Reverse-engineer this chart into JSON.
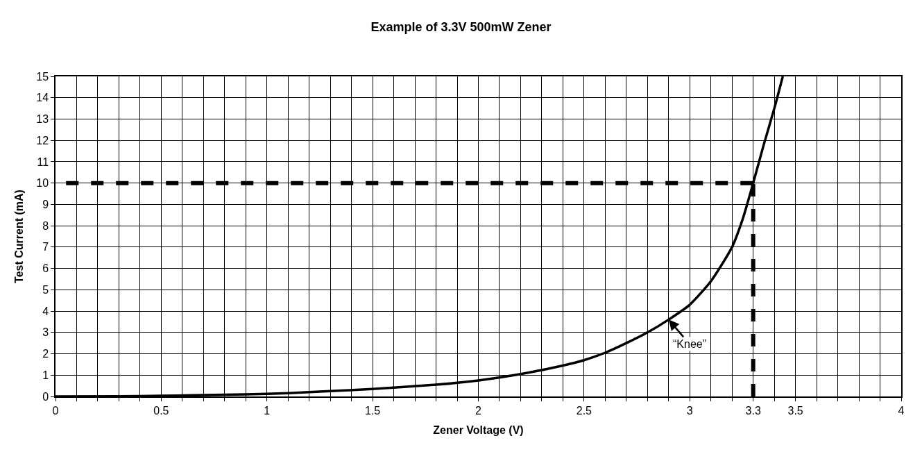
{
  "chart_data": {
    "type": "line",
    "title": "Example of 3.3V 500mW Zener",
    "xlabel": "Zener Voltage (V)",
    "ylabel": "Test Current (mA)",
    "series": [
      {
        "color": "#000000",
        "line_style": "solid",
        "x": [
          0,
          0.3,
          0.5,
          0.8,
          1,
          1.2,
          1.5,
          1.8,
          2,
          2.2,
          2.4,
          2.5,
          2.6,
          2.7,
          2.8,
          2.9,
          3.0,
          3.1,
          3.2,
          3.25,
          3.3,
          3.35,
          3.4,
          3.44
        ],
        "values": [
          0,
          0.01,
          0.03,
          0.08,
          0.12,
          0.2,
          0.35,
          0.55,
          0.75,
          1.05,
          1.45,
          1.7,
          2.05,
          2.5,
          3.0,
          3.6,
          4.3,
          5.4,
          7.0,
          8.3,
          10,
          11.8,
          13.5,
          15
        ]
      },
      {
        "color": "#000000",
        "line_style": "dashed",
        "x": [
          0.05,
          3.3
        ],
        "values": [
          10,
          10
        ]
      },
      {
        "color": "#000000",
        "line_style": "dashed",
        "x": [
          3.3,
          3.3
        ],
        "values": [
          0,
          10
        ]
      }
    ],
    "annotations": [
      {
        "text": "“Knee”",
        "x": 2.9,
        "y": 3.6
      }
    ],
    "xlim": [
      0,
      4
    ],
    "ylim": [
      0,
      15
    ],
    "xticks": [
      0,
      {
        "value": 0.1,
        "label": null
      },
      {
        "value": 0.2,
        "label": null
      },
      {
        "value": 0.3,
        "label": null
      },
      {
        "value": 0.4,
        "label": null
      },
      0.5,
      {
        "value": 0.6,
        "label": null
      },
      {
        "value": 0.7,
        "label": null
      },
      {
        "value": 0.8,
        "label": null
      },
      {
        "value": 0.9,
        "label": null
      },
      1,
      {
        "value": 1.1,
        "label": null
      },
      {
        "value": 1.2,
        "label": null
      },
      {
        "value": 1.3,
        "label": null
      },
      {
        "value": 1.4,
        "label": null
      },
      1.5,
      {
        "value": 1.6,
        "label": null
      },
      {
        "value": 1.7,
        "label": null
      },
      {
        "value": 1.8,
        "label": null
      },
      {
        "value": 1.9,
        "label": null
      },
      2,
      {
        "value": 2.1,
        "label": null
      },
      {
        "value": 2.2,
        "label": null
      },
      {
        "value": 2.3,
        "label": null
      },
      {
        "value": 2.4,
        "label": null
      },
      2.5,
      {
        "value": 2.6,
        "label": null
      },
      {
        "value": 2.7,
        "label": null
      },
      {
        "value": 2.8,
        "label": null
      },
      {
        "value": 2.9,
        "label": null
      },
      3,
      {
        "value": 3.1,
        "label": null
      },
      {
        "value": 3.2,
        "label": null
      },
      3.3,
      {
        "value": 3.4,
        "label": null
      },
      3.5,
      {
        "value": 3.6,
        "label": null
      },
      {
        "value": 3.7,
        "label": null
      },
      {
        "value": 3.8,
        "label": null
      },
      {
        "value": 3.9,
        "label": null
      },
      4
    ],
    "yticks": [
      0,
      1,
      2,
      3,
      4,
      5,
      6,
      7,
      8,
      9,
      10,
      11,
      12,
      13,
      14,
      15
    ],
    "grid": true,
    "marker": "none"
  }
}
